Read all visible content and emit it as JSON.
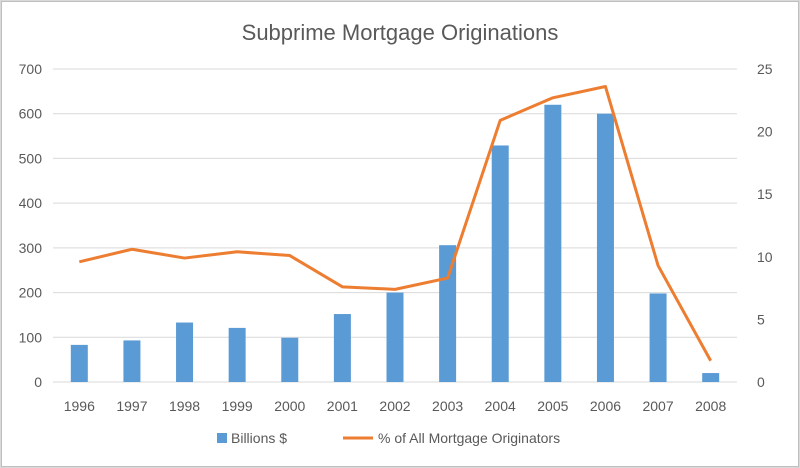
{
  "chart_data": {
    "type": "bar+line",
    "title": "Subprime Mortgage Originations",
    "categories": [
      "1996",
      "1997",
      "1998",
      "1999",
      "2000",
      "2001",
      "2002",
      "2003",
      "2004",
      "2005",
      "2006",
      "2007",
      "2008"
    ],
    "series": [
      {
        "name": "Billions $",
        "type": "bar",
        "axis": "left",
        "color": "#5b9bd5",
        "values": [
          83,
          93,
          133,
          121,
          99,
          152,
          200,
          306,
          529,
          620,
          600,
          198,
          20
        ]
      },
      {
        "name": "%  of All Mortgage Originators",
        "type": "line",
        "axis": "right",
        "color": "#ed7d31",
        "values": [
          9.6,
          10.6,
          9.9,
          10.4,
          10.1,
          7.6,
          7.4,
          8.3,
          20.9,
          22.7,
          23.6,
          9.3,
          1.7
        ]
      }
    ],
    "y_left": {
      "min": 0,
      "max": 700,
      "ticks": [
        "0",
        "100",
        "200",
        "300",
        "400",
        "500",
        "600",
        "700"
      ]
    },
    "y_right": {
      "min": 0,
      "max": 25,
      "ticks": [
        "0",
        "5",
        "10",
        "15",
        "20",
        "25"
      ]
    },
    "grid": true,
    "legend_position": "bottom",
    "colors": {
      "gridline": "#d9d9d9",
      "text": "#595959"
    }
  }
}
